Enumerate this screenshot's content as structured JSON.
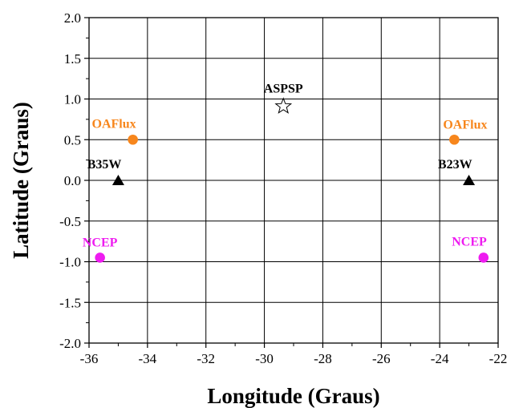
{
  "chart_data": {
    "type": "scatter",
    "xlabel": "Longitude (Graus)",
    "ylabel": "Latitude (Graus)",
    "xlim": [
      -36,
      -22
    ],
    "ylim": [
      -2.0,
      2.0
    ],
    "x_ticks": [
      -36,
      -34,
      -32,
      -30,
      -28,
      -26,
      -24,
      -22
    ],
    "x_tick_labels": [
      "-36",
      "-34",
      "-32",
      "-30",
      "-28",
      "-26",
      "-24",
      "-22"
    ],
    "y_ticks": [
      2.0,
      1.5,
      1.0,
      0.5,
      0.0,
      -0.5,
      -1.0,
      -1.5,
      -2.0
    ],
    "y_tick_labels": [
      "2.0",
      "1.5",
      "1.0",
      "0.5",
      "0.0",
      "-0.5",
      "-1.0",
      "-1.5",
      "-2.0"
    ],
    "grid": true,
    "points": [
      {
        "label": "ASPSP",
        "x": -29.35,
        "y": 0.92,
        "marker": "star",
        "color": "#000000",
        "label_anchor": "above"
      },
      {
        "label": "OAFlux",
        "x": -34.5,
        "y": 0.5,
        "marker": "circle",
        "color": "#f7861c",
        "label_anchor": "upper-left"
      },
      {
        "label": "OAFlux",
        "x": -23.5,
        "y": 0.5,
        "marker": "circle",
        "color": "#f7861c",
        "label_anchor": "upper-right"
      },
      {
        "label": "B35W",
        "x": -35.0,
        "y": 0.0,
        "marker": "triangle",
        "color": "#000000",
        "label_anchor": "upper-left"
      },
      {
        "label": "B23W",
        "x": -23.0,
        "y": 0.0,
        "marker": "triangle",
        "color": "#000000",
        "label_anchor": "upper-left"
      },
      {
        "label": "NCEP",
        "x": -35.625,
        "y": -0.95,
        "marker": "circle",
        "color": "#ee1cf0",
        "label_anchor": "above"
      },
      {
        "label": "NCEP",
        "x": -22.5,
        "y": -0.95,
        "marker": "circle",
        "color": "#ee1cf0",
        "label_anchor": "upper-left"
      }
    ]
  }
}
